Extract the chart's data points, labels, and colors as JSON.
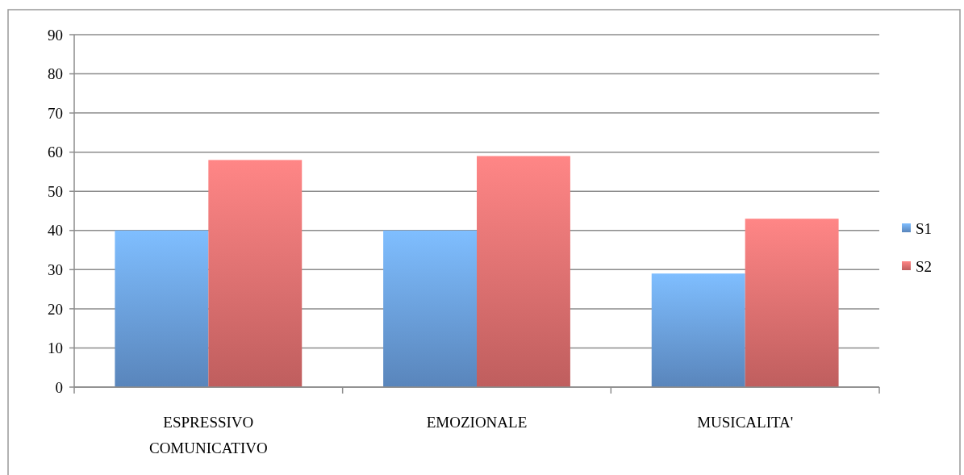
{
  "chart_data": {
    "type": "bar",
    "categories": [
      "ESPRESSIVO COMUNICATIVO",
      "EMOZIONALE",
      "MUSICALITA'"
    ],
    "series": [
      {
        "name": "S1",
        "color": "#6a9fe0",
        "values": [
          40,
          40,
          29
        ]
      },
      {
        "name": "S2",
        "color": "#e47070",
        "values": [
          58,
          59,
          43
        ]
      }
    ],
    "ylim": [
      0,
      90
    ],
    "yticks": [
      0,
      10,
      20,
      30,
      40,
      50,
      60,
      70,
      80,
      90
    ],
    "grid": "y",
    "legend": "right"
  }
}
